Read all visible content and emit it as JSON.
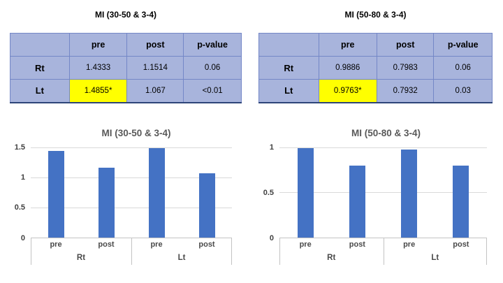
{
  "slide": {
    "background": "#FFFFFF"
  },
  "tables": [
    {
      "title": "MI (30-50 & 3-4)",
      "headers": [
        "",
        "pre",
        "post",
        "p-value"
      ],
      "rows": [
        {
          "label": "Rt",
          "pre": "1.4333",
          "post": "1.1514",
          "p_value": "0.06",
          "pre_highlighted": false
        },
        {
          "label": "Lt",
          "pre": "1.4855*",
          "post": "1.067",
          "p_value": "<0.01",
          "pre_highlighted": true
        }
      ]
    },
    {
      "title": "MI (50-80 & 3-4)",
      "headers": [
        "",
        "pre",
        "post",
        "p-value"
      ],
      "rows": [
        {
          "label": "Rt",
          "pre": "0.9886",
          "post": "0.7983",
          "p_value": "0.06",
          "pre_highlighted": false
        },
        {
          "label": "Lt",
          "pre": "0.9763*",
          "post": "0.7932",
          "p_value": "0.03",
          "pre_highlighted": true
        }
      ]
    }
  ],
  "chart_data": [
    {
      "type": "bar",
      "title": "MI (30-50 & 3-4)",
      "categories": [
        "pre",
        "post",
        "pre",
        "post"
      ],
      "group_labels": [
        "Rt",
        "Lt"
      ],
      "values": [
        1.4333,
        1.1514,
        1.4855,
        1.067
      ],
      "yticks": [
        0,
        0.5,
        1,
        1.5
      ],
      "ylim": [
        0,
        1.5
      ],
      "xlabel": "",
      "ylabel": "",
      "grid": "horizontal",
      "legend": "none",
      "bar_color": "#4472C4"
    },
    {
      "type": "bar",
      "title": "MI (50-80 & 3-4)",
      "categories": [
        "pre",
        "post",
        "pre",
        "post"
      ],
      "group_labels": [
        "Rt",
        "Lt"
      ],
      "values": [
        0.9886,
        0.7983,
        0.9763,
        0.7932
      ],
      "yticks": [
        0,
        0.5,
        1
      ],
      "ylim": [
        0,
        1
      ],
      "xlabel": "",
      "ylabel": "",
      "grid": "horizontal",
      "legend": "none",
      "bar_color": "#4472C4"
    }
  ],
  "colors": {
    "bar_fill": "#4472C4",
    "table_fill": "#A8B4DC",
    "table_inner_border": "#7487C7",
    "table_outer_border": "#5A70B8",
    "table_bottom_border": "#2E4579",
    "highlight_fill": "#FFFF00",
    "gridline": "#D9D9D9",
    "axis_line": "#C3C3C3",
    "chart_title_text": "#595959",
    "axis_label_text": "#4A4A4A",
    "table_text": "#000000"
  }
}
